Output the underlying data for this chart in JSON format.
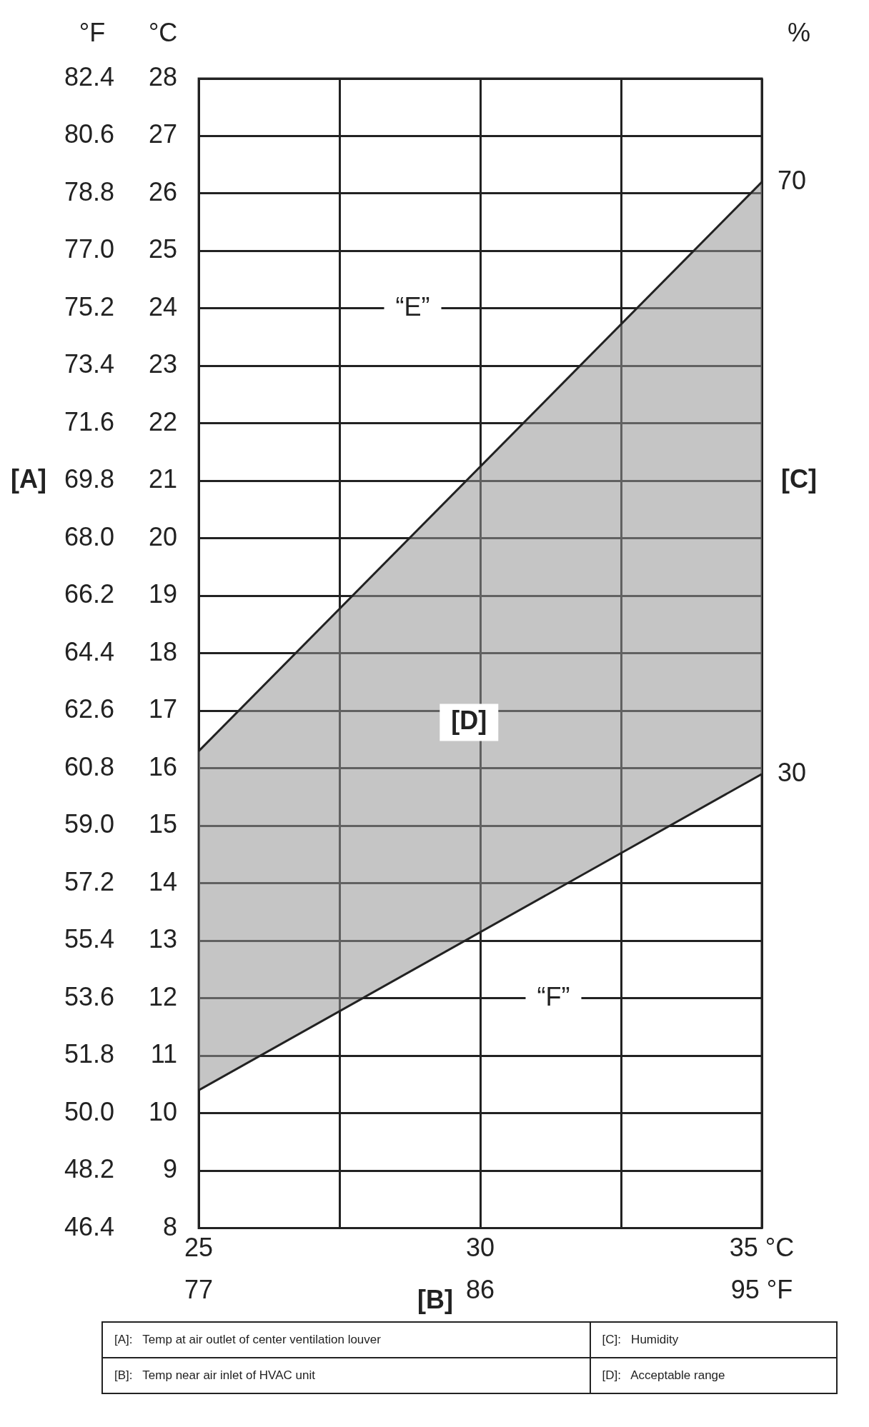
{
  "chart_data": {
    "type": "line",
    "xlabel": "[B]",
    "xlim": [
      25,
      35
    ],
    "xticks": [
      25,
      {
        "value": 27.5,
        "label": null
      },
      30,
      {
        "value": 32.5,
        "label": null
      },
      {
        "value": 35,
        "label": "35 °C"
      }
    ],
    "x2lim": [
      77,
      95
    ],
    "x2ticks": [
      77,
      86,
      {
        "value": 95,
        "label": "95 °F"
      }
    ],
    "ylim": [
      8,
      28
    ],
    "yticks": [
      8,
      9,
      10,
      11,
      12,
      13,
      14,
      15,
      16,
      17,
      18,
      19,
      20,
      21,
      22,
      23,
      24,
      25,
      26,
      27,
      28
    ],
    "y2lim": [
      46.4,
      82.4
    ],
    "y2ticks": [
      {
        "value": 46.4,
        "label": "46.4"
      },
      {
        "value": 48.2,
        "label": "48.2"
      },
      {
        "value": 50,
        "label": "50.0"
      },
      {
        "value": 51.8,
        "label": "51.8"
      },
      {
        "value": 53.6,
        "label": "53.6"
      },
      {
        "value": 55.4,
        "label": "55.4"
      },
      {
        "value": 57.2,
        "label": "57.2"
      },
      {
        "value": 59,
        "label": "59.0"
      },
      {
        "value": 60.8,
        "label": "60.8"
      },
      {
        "value": 62.6,
        "label": "62.6"
      },
      {
        "value": 64.4,
        "label": "64.4"
      },
      {
        "value": 66.2,
        "label": "66.2"
      },
      {
        "value": 68,
        "label": "68.0"
      },
      {
        "value": 69.8,
        "label": "69.8"
      },
      {
        "value": 71.6,
        "label": "71.6"
      },
      {
        "value": 73.4,
        "label": "73.4"
      },
      {
        "value": 75.2,
        "label": "75.2"
      },
      {
        "value": 77,
        "label": "77.0"
      },
      {
        "value": 78.8,
        "label": "78.8"
      },
      {
        "value": 80.6,
        "label": "80.6"
      },
      {
        "value": 82.4,
        "label": "82.4"
      }
    ],
    "x": [
      25,
      35
    ],
    "grid": true,
    "legend": false,
    "marker": "none",
    "line_style": "solid",
    "series": [
      {
        "color": "#222222",
        "values": [
          16.3,
          26.2
        ],
        "lower": [
          10.4,
          15.9
        ],
        "upper": [
          16.3,
          26.2
        ]
      },
      {
        "color": "#222222",
        "values": [
          10.4,
          15.9
        ]
      }
    ],
    "annotations": [
      "°F",
      "°C",
      "%",
      "[C]",
      {
        "text": "70",
        "x": 35,
        "y": 26.2
      },
      {
        "text": "30",
        "x": 35,
        "y": 15.9
      },
      "“E”",
      "“F”",
      "[D]",
      "[A]",
      "[A]:   Temp at air outlet of center ventilation louver",
      "[C]:   Humidity",
      "[B]:   Temp near air inlet of HVAC unit",
      "[D]:   Acceptable range"
    ]
  }
}
